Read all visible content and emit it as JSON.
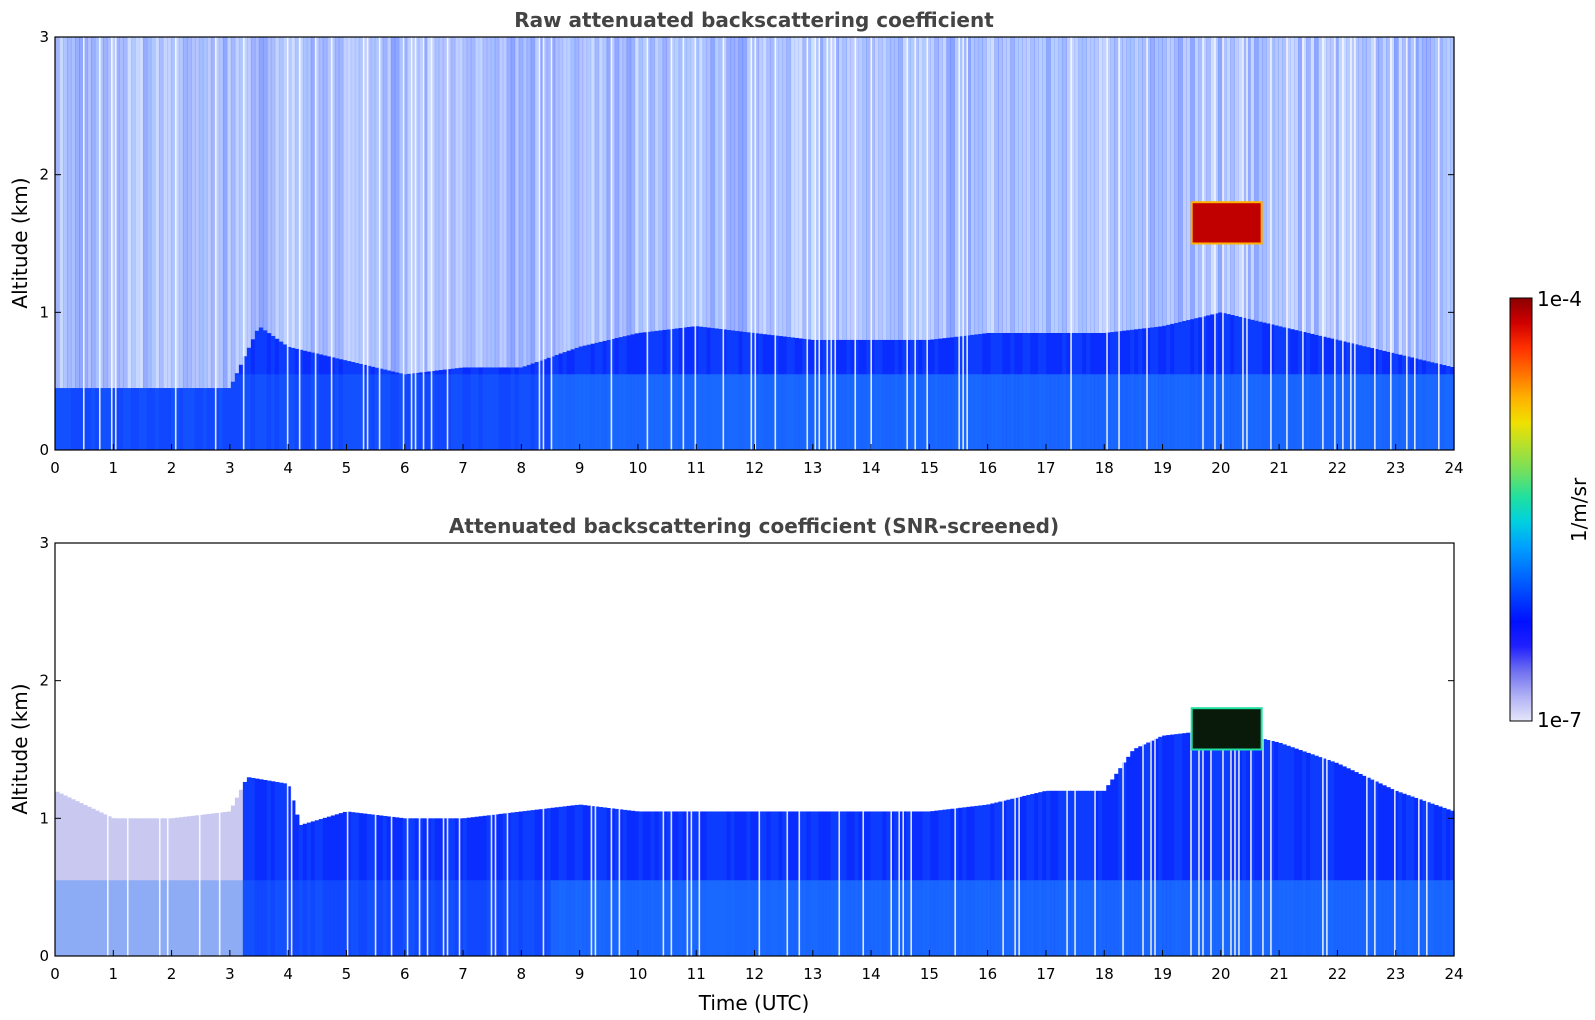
{
  "chart_data": [
    {
      "type": "heatmap",
      "title": "Raw attenuated backscattering coefficient",
      "xlabel": "",
      "ylabel": "Altitude (km)",
      "xlim": [
        0,
        24
      ],
      "ylim": [
        0,
        3
      ],
      "xticks": [
        "0",
        "1",
        "2",
        "3",
        "4",
        "5",
        "6",
        "7",
        "8",
        "9",
        "10",
        "11",
        "12",
        "13",
        "14",
        "15",
        "16",
        "17",
        "18",
        "19",
        "20",
        "21",
        "22",
        "23",
        "24"
      ],
      "yticks": [
        "0",
        "1",
        "2",
        "3"
      ],
      "boundary_layer_top_km": [
        [
          0,
          0.45
        ],
        [
          1,
          0.45
        ],
        [
          2,
          0.45
        ],
        [
          3,
          0.45
        ],
        [
          3.5,
          0.9
        ],
        [
          4,
          0.75
        ],
        [
          5,
          0.65
        ],
        [
          6,
          0.55
        ],
        [
          7,
          0.6
        ],
        [
          8,
          0.6
        ],
        [
          9,
          0.75
        ],
        [
          10,
          0.85
        ],
        [
          11,
          0.9
        ],
        [
          12,
          0.85
        ],
        [
          13,
          0.8
        ],
        [
          14,
          0.8
        ],
        [
          15,
          0.8
        ],
        [
          16,
          0.85
        ],
        [
          17,
          0.85
        ],
        [
          18,
          0.85
        ],
        [
          19,
          0.9
        ],
        [
          20,
          1.0
        ],
        [
          21,
          0.9
        ],
        [
          22,
          0.8
        ],
        [
          23,
          0.7
        ],
        [
          24,
          0.6
        ]
      ],
      "features": [
        {
          "label": "cloud",
          "time_start": 19.5,
          "time_end": 20.7,
          "alt_bottom_km": 1.5,
          "alt_top_km": 1.8,
          "intensity": "1e-4"
        }
      ],
      "noise": "high above boundary layer"
    },
    {
      "type": "heatmap",
      "title": "Attenuated backscattering coefficient (SNR-screened)",
      "xlabel": "Time (UTC)",
      "ylabel": "Altitude (km)",
      "xlim": [
        0,
        24
      ],
      "ylim": [
        0,
        3
      ],
      "xticks": [
        "0",
        "1",
        "2",
        "3",
        "4",
        "5",
        "6",
        "7",
        "8",
        "9",
        "10",
        "11",
        "12",
        "13",
        "14",
        "15",
        "16",
        "17",
        "18",
        "19",
        "20",
        "21",
        "22",
        "23",
        "24"
      ],
      "yticks": [
        "0",
        "1",
        "2",
        "3"
      ],
      "screened_top_km": [
        [
          0,
          1.2
        ],
        [
          1,
          1.0
        ],
        [
          2,
          1.0
        ],
        [
          3,
          1.05
        ],
        [
          3.3,
          1.3
        ],
        [
          4,
          1.25
        ],
        [
          4.2,
          0.95
        ],
        [
          5,
          1.05
        ],
        [
          6,
          1.0
        ],
        [
          7,
          1.0
        ],
        [
          8,
          1.05
        ],
        [
          9,
          1.1
        ],
        [
          10,
          1.05
        ],
        [
          11,
          1.05
        ],
        [
          12,
          1.05
        ],
        [
          13,
          1.05
        ],
        [
          14,
          1.05
        ],
        [
          15,
          1.05
        ],
        [
          16,
          1.1
        ],
        [
          17,
          1.2
        ],
        [
          18,
          1.2
        ],
        [
          18.5,
          1.5
        ],
        [
          19,
          1.6
        ],
        [
          20,
          1.65
        ],
        [
          21,
          1.55
        ],
        [
          22,
          1.4
        ],
        [
          23,
          1.2
        ],
        [
          24,
          1.05
        ]
      ],
      "features": [
        {
          "label": "cloud",
          "time_start": 19.5,
          "time_end": 20.7,
          "alt_bottom_km": 1.5,
          "alt_top_km": 1.8,
          "intensity": "saturated"
        }
      ]
    }
  ],
  "colorbar": {
    "label": "1/m/sr",
    "max_label": "1e-4",
    "min_label": "1e-7",
    "colors": [
      "#e6e6fa",
      "#b0b0f5",
      "#7070f0",
      "#2020ff",
      "#0010ff",
      "#0040ff",
      "#0070ff",
      "#00a0ff",
      "#00d0e0",
      "#20e0a0",
      "#70e060",
      "#b0e030",
      "#f0e000",
      "#ffb000",
      "#ff7000",
      "#ff3000",
      "#d00000",
      "#8b0000"
    ]
  }
}
